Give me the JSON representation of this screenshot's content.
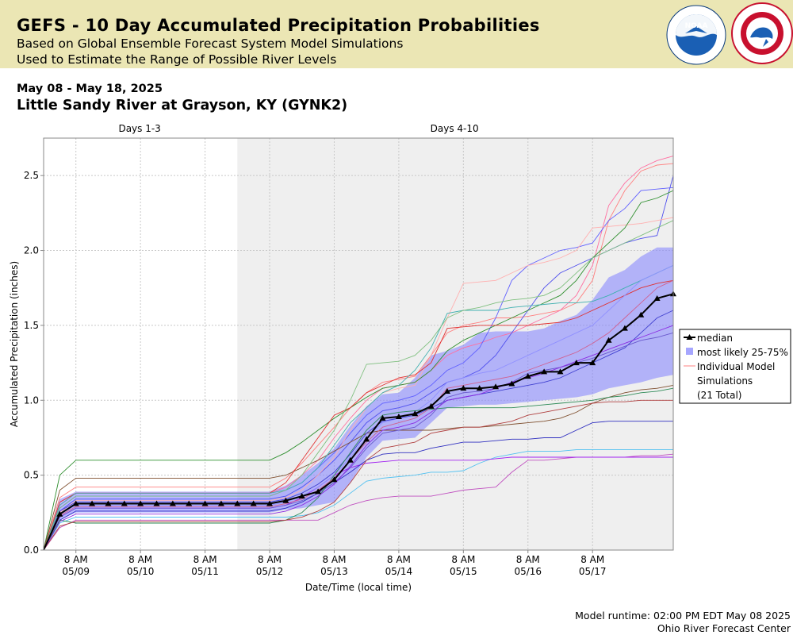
{
  "header": {
    "title": "GEFS - 10 Day Accumulated Precipitation Probabilities",
    "subtitle1": "Based on Global Ensemble Forecast System Model Simulations",
    "subtitle2": "Used to Estimate the Range of Possible River Levels",
    "noaa_logo": "noaa-logo",
    "nws_logo": "nws-logo"
  },
  "date_range": "May 08 - May 18, 2025",
  "station": "Little Sandy River at Grayson, KY (GYNK2)",
  "footer": {
    "runtime": "Model runtime: 02:00 PM EDT May 08 2025",
    "center": "Ohio River Forecast Center"
  },
  "chart_data": {
    "type": "line",
    "xlabel": "Date/Time (local time)",
    "ylabel": "Accumulated Precipitation (inches)",
    "ylim": [
      0,
      2.75
    ],
    "y_ticks": [
      0.0,
      0.5,
      1.0,
      1.5,
      2.0,
      2.5
    ],
    "y_tick_labels": [
      "0.0",
      "0.5",
      "1.0",
      "1.5",
      "2.0",
      "2.5"
    ],
    "x_start_hour": 0,
    "x_end_hour": 234,
    "x_ticks": [
      {
        "hour": 12,
        "time": "8 AM",
        "date": "05/09"
      },
      {
        "hour": 36,
        "time": "8 AM",
        "date": "05/10"
      },
      {
        "hour": 60,
        "time": "8 AM",
        "date": "05/11"
      },
      {
        "hour": 84,
        "time": "8 AM",
        "date": "05/12"
      },
      {
        "hour": 108,
        "time": "8 AM",
        "date": "05/13"
      },
      {
        "hour": 132,
        "time": "8 AM",
        "date": "05/14"
      },
      {
        "hour": 156,
        "time": "8 AM",
        "date": "05/15"
      },
      {
        "hour": 180,
        "time": "8 AM",
        "date": "05/16"
      },
      {
        "hour": 204,
        "time": "8 AM",
        "date": "05/17"
      }
    ],
    "grid": true,
    "periods": [
      {
        "label": "Days 1-3",
        "start_hour": 0,
        "end_hour": 72,
        "shaded": false
      },
      {
        "label": "Days 4-10",
        "start_hour": 72,
        "end_hour": 234,
        "shaded": true
      }
    ],
    "legend_position": "right",
    "legend": {
      "median": "median",
      "band": "most likely 25-75%",
      "members": [
        "Individual Model",
        "Simulations",
        "(21 Total)"
      ]
    },
    "median": {
      "name": "median",
      "color": "#000000",
      "x": [
        0,
        6,
        12,
        18,
        24,
        30,
        36,
        42,
        48,
        54,
        60,
        66,
        72,
        78,
        84,
        90,
        96,
        102,
        108,
        114,
        120,
        126,
        132,
        138,
        144,
        150,
        156,
        162,
        168,
        174,
        180,
        186,
        192,
        198,
        204,
        210,
        216,
        222,
        228,
        234
      ],
      "y": [
        0.0,
        0.24,
        0.31,
        0.31,
        0.31,
        0.31,
        0.31,
        0.31,
        0.31,
        0.31,
        0.31,
        0.31,
        0.31,
        0.31,
        0.31,
        0.33,
        0.36,
        0.39,
        0.47,
        0.6,
        0.74,
        0.88,
        0.89,
        0.91,
        0.96,
        1.06,
        1.08,
        1.08,
        1.09,
        1.11,
        1.16,
        1.19,
        1.19,
        1.25,
        1.25,
        1.4,
        1.48,
        1.57,
        1.68,
        1.71
      ]
    },
    "band_25_75": {
      "name": "most likely 25-75%",
      "color": "#8080ff",
      "lower": [
        0.0,
        0.2,
        0.25,
        0.25,
        0.25,
        0.25,
        0.25,
        0.25,
        0.25,
        0.25,
        0.25,
        0.25,
        0.25,
        0.25,
        0.25,
        0.27,
        0.28,
        0.3,
        0.32,
        0.45,
        0.62,
        0.73,
        0.74,
        0.75,
        0.85,
        0.95,
        0.96,
        0.97,
        0.97,
        0.98,
        0.99,
        1.0,
        1.01,
        1.02,
        1.04,
        1.08,
        1.1,
        1.12,
        1.15,
        1.17
      ],
      "upper": [
        0.0,
        0.34,
        0.39,
        0.39,
        0.39,
        0.39,
        0.39,
        0.39,
        0.39,
        0.39,
        0.39,
        0.39,
        0.39,
        0.39,
        0.39,
        0.43,
        0.5,
        0.58,
        0.68,
        0.83,
        0.96,
        1.04,
        1.05,
        1.15,
        1.3,
        1.33,
        1.37,
        1.45,
        1.46,
        1.46,
        1.46,
        1.48,
        1.53,
        1.57,
        1.67,
        1.82,
        1.87,
        1.96,
        2.02,
        2.02
      ]
    },
    "members": [
      {
        "color": "#ff7f7f",
        "y": [
          0.0,
          0.35,
          0.42,
          0.42,
          0.42,
          0.42,
          0.42,
          0.42,
          0.42,
          0.42,
          0.42,
          0.42,
          0.42,
          0.42,
          0.42,
          0.48,
          0.58,
          0.7,
          0.82,
          0.95,
          1.05,
          1.12,
          1.14,
          1.16,
          1.3,
          1.45,
          1.5,
          1.52,
          1.55,
          1.55,
          1.56,
          1.58,
          1.6,
          1.65,
          1.8,
          2.2,
          2.4,
          2.53,
          2.57,
          2.58
        ]
      },
      {
        "color": "#ff6fa0",
        "y": [
          0.0,
          0.3,
          0.38,
          0.38,
          0.38,
          0.38,
          0.38,
          0.38,
          0.38,
          0.38,
          0.38,
          0.38,
          0.38,
          0.38,
          0.38,
          0.42,
          0.5,
          0.6,
          0.75,
          0.88,
          1.0,
          1.08,
          1.1,
          1.12,
          1.2,
          1.3,
          1.35,
          1.38,
          1.42,
          1.45,
          1.5,
          1.55,
          1.6,
          1.7,
          1.9,
          2.3,
          2.45,
          2.55,
          2.6,
          2.63
        ]
      },
      {
        "color": "#6060ff",
        "y": [
          0.0,
          0.28,
          0.36,
          0.36,
          0.36,
          0.36,
          0.36,
          0.36,
          0.36,
          0.36,
          0.36,
          0.36,
          0.36,
          0.36,
          0.36,
          0.4,
          0.45,
          0.55,
          0.65,
          0.78,
          0.9,
          0.98,
          1.0,
          1.03,
          1.1,
          1.2,
          1.25,
          1.35,
          1.55,
          1.8,
          1.9,
          1.95,
          2.0,
          2.02,
          2.05,
          2.2,
          2.28,
          2.4,
          2.41,
          2.42
        ]
      },
      {
        "color": "#5050ee",
        "y": [
          0.0,
          0.26,
          0.34,
          0.34,
          0.34,
          0.34,
          0.34,
          0.34,
          0.34,
          0.34,
          0.34,
          0.34,
          0.34,
          0.34,
          0.34,
          0.36,
          0.42,
          0.5,
          0.6,
          0.72,
          0.85,
          0.93,
          0.95,
          0.98,
          1.05,
          1.12,
          1.15,
          1.2,
          1.3,
          1.45,
          1.6,
          1.75,
          1.85,
          1.9,
          1.95,
          2.0,
          2.05,
          2.08,
          2.1,
          2.5
        ]
      },
      {
        "color": "#ffb0b0",
        "y": [
          0.0,
          0.25,
          0.33,
          0.33,
          0.33,
          0.33,
          0.33,
          0.33,
          0.33,
          0.33,
          0.33,
          0.33,
          0.33,
          0.33,
          0.33,
          0.35,
          0.4,
          0.5,
          0.62,
          0.8,
          0.95,
          1.05,
          1.08,
          1.1,
          1.3,
          1.55,
          1.78,
          1.79,
          1.8,
          1.85,
          1.9,
          1.92,
          1.95,
          2.0,
          2.15,
          2.16,
          2.17,
          2.18,
          2.2,
          2.22
        ]
      },
      {
        "color": "#2f8f2f",
        "y": [
          0.0,
          0.5,
          0.6,
          0.6,
          0.6,
          0.6,
          0.6,
          0.6,
          0.6,
          0.6,
          0.6,
          0.6,
          0.6,
          0.6,
          0.6,
          0.65,
          0.72,
          0.8,
          0.88,
          0.95,
          1.02,
          1.08,
          1.1,
          1.12,
          1.2,
          1.33,
          1.4,
          1.45,
          1.5,
          1.55,
          1.6,
          1.65,
          1.7,
          1.8,
          1.95,
          2.05,
          2.15,
          2.32,
          2.35,
          2.4
        ]
      },
      {
        "color": "#7f4f2f",
        "y": [
          0.0,
          0.4,
          0.48,
          0.48,
          0.48,
          0.48,
          0.48,
          0.48,
          0.48,
          0.48,
          0.48,
          0.48,
          0.48,
          0.48,
          0.48,
          0.5,
          0.55,
          0.6,
          0.66,
          0.72,
          0.78,
          0.8,
          0.8,
          0.8,
          0.8,
          0.81,
          0.82,
          0.82,
          0.83,
          0.84,
          0.85,
          0.86,
          0.88,
          0.92,
          0.98,
          1.02,
          1.05,
          1.07,
          1.08,
          1.1
        ]
      },
      {
        "color": "#c050c0",
        "y": [
          0.0,
          0.15,
          0.2,
          0.2,
          0.2,
          0.2,
          0.2,
          0.2,
          0.2,
          0.2,
          0.2,
          0.2,
          0.2,
          0.2,
          0.2,
          0.2,
          0.2,
          0.2,
          0.25,
          0.3,
          0.33,
          0.35,
          0.36,
          0.36,
          0.36,
          0.38,
          0.4,
          0.41,
          0.42,
          0.52,
          0.6,
          0.6,
          0.61,
          0.62,
          0.62,
          0.62,
          0.62,
          0.63,
          0.63,
          0.64
        ]
      },
      {
        "color": "#50c0f0",
        "y": [
          0.0,
          0.18,
          0.22,
          0.22,
          0.22,
          0.22,
          0.22,
          0.22,
          0.22,
          0.22,
          0.22,
          0.22,
          0.22,
          0.22,
          0.22,
          0.22,
          0.23,
          0.25,
          0.3,
          0.38,
          0.46,
          0.48,
          0.49,
          0.5,
          0.52,
          0.52,
          0.53,
          0.58,
          0.62,
          0.64,
          0.66,
          0.66,
          0.66,
          0.67,
          0.67,
          0.67,
          0.67,
          0.67,
          0.67,
          0.67
        ]
      },
      {
        "color": "#a020f0",
        "y": [
          0.0,
          0.22,
          0.28,
          0.28,
          0.28,
          0.28,
          0.28,
          0.28,
          0.28,
          0.28,
          0.28,
          0.28,
          0.28,
          0.28,
          0.28,
          0.3,
          0.35,
          0.42,
          0.5,
          0.55,
          0.58,
          0.59,
          0.6,
          0.6,
          0.6,
          0.6,
          0.6,
          0.6,
          0.61,
          0.62,
          0.62,
          0.62,
          0.62,
          0.62,
          0.62,
          0.62,
          0.62,
          0.62,
          0.62,
          0.62
        ]
      },
      {
        "color": "#3030c0",
        "y": [
          0.0,
          0.2,
          0.26,
          0.26,
          0.26,
          0.26,
          0.26,
          0.26,
          0.26,
          0.26,
          0.26,
          0.26,
          0.26,
          0.26,
          0.26,
          0.28,
          0.32,
          0.38,
          0.45,
          0.52,
          0.6,
          0.64,
          0.65,
          0.65,
          0.68,
          0.7,
          0.72,
          0.72,
          0.73,
          0.74,
          0.74,
          0.75,
          0.75,
          0.8,
          0.85,
          0.86,
          0.86,
          0.86,
          0.86,
          0.86
        ]
      },
      {
        "color": "#e03030",
        "y": [
          0.0,
          0.32,
          0.38,
          0.38,
          0.38,
          0.38,
          0.38,
          0.38,
          0.38,
          0.38,
          0.38,
          0.38,
          0.38,
          0.38,
          0.38,
          0.45,
          0.6,
          0.75,
          0.9,
          0.95,
          1.05,
          1.1,
          1.15,
          1.17,
          1.25,
          1.48,
          1.49,
          1.5,
          1.5,
          1.5,
          1.5,
          1.51,
          1.52,
          1.55,
          1.6,
          1.65,
          1.7,
          1.75,
          1.78,
          1.8
        ]
      },
      {
        "color": "#40b0b0",
        "y": [
          0.0,
          0.3,
          0.38,
          0.38,
          0.38,
          0.38,
          0.38,
          0.38,
          0.38,
          0.38,
          0.38,
          0.38,
          0.38,
          0.38,
          0.38,
          0.4,
          0.45,
          0.55,
          0.7,
          0.85,
          0.95,
          1.05,
          1.1,
          1.2,
          1.35,
          1.58,
          1.6,
          1.6,
          1.6,
          1.62,
          1.63,
          1.64,
          1.65,
          1.65,
          1.66,
          1.7,
          1.75,
          1.8,
          1.85,
          1.9
        ]
      },
      {
        "color": "#80c080",
        "y": [
          0.0,
          0.28,
          0.36,
          0.36,
          0.36,
          0.36,
          0.36,
          0.36,
          0.36,
          0.36,
          0.36,
          0.36,
          0.36,
          0.36,
          0.36,
          0.4,
          0.5,
          0.65,
          0.8,
          1.0,
          1.24,
          1.25,
          1.26,
          1.3,
          1.4,
          1.55,
          1.6,
          1.62,
          1.65,
          1.67,
          1.68,
          1.7,
          1.75,
          1.85,
          1.95,
          2.0,
          2.05,
          2.1,
          2.15,
          2.2
        ]
      },
      {
        "color": "#9090ff",
        "y": [
          0.0,
          0.24,
          0.3,
          0.3,
          0.3,
          0.3,
          0.3,
          0.3,
          0.3,
          0.3,
          0.3,
          0.3,
          0.3,
          0.3,
          0.3,
          0.32,
          0.36,
          0.42,
          0.5,
          0.62,
          0.75,
          0.85,
          0.88,
          0.92,
          1.0,
          1.12,
          1.15,
          1.18,
          1.2,
          1.25,
          1.3,
          1.35,
          1.4,
          1.45,
          1.5,
          1.6,
          1.7,
          1.8,
          1.85,
          1.9
        ]
      },
      {
        "color": "#4040d0",
        "y": [
          0.0,
          0.26,
          0.32,
          0.32,
          0.32,
          0.32,
          0.32,
          0.32,
          0.32,
          0.32,
          0.32,
          0.32,
          0.32,
          0.32,
          0.32,
          0.34,
          0.38,
          0.44,
          0.52,
          0.64,
          0.78,
          0.86,
          0.88,
          0.9,
          0.95,
          1.0,
          1.02,
          1.04,
          1.06,
          1.08,
          1.1,
          1.12,
          1.15,
          1.2,
          1.25,
          1.3,
          1.35,
          1.45,
          1.55,
          1.6
        ]
      },
      {
        "color": "#6a5acd",
        "y": [
          0.0,
          0.22,
          0.28,
          0.28,
          0.28,
          0.28,
          0.28,
          0.28,
          0.28,
          0.28,
          0.28,
          0.28,
          0.28,
          0.28,
          0.28,
          0.3,
          0.33,
          0.38,
          0.45,
          0.55,
          0.68,
          0.78,
          0.8,
          0.82,
          0.9,
          1.02,
          1.05,
          1.06,
          1.08,
          1.12,
          1.18,
          1.2,
          1.22,
          1.25,
          1.28,
          1.32,
          1.36,
          1.4,
          1.42,
          1.45
        ]
      },
      {
        "color": "#2e8b57",
        "y": [
          0.0,
          0.2,
          0.18,
          0.18,
          0.18,
          0.18,
          0.18,
          0.18,
          0.18,
          0.18,
          0.18,
          0.18,
          0.18,
          0.18,
          0.18,
          0.2,
          0.25,
          0.35,
          0.5,
          0.65,
          0.8,
          0.9,
          0.92,
          0.93,
          0.94,
          0.95,
          0.95,
          0.95,
          0.95,
          0.95,
          0.96,
          0.97,
          0.98,
          0.99,
          1.0,
          1.02,
          1.03,
          1.05,
          1.06,
          1.08
        ]
      },
      {
        "color": "#b04040",
        "y": [
          0.0,
          0.16,
          0.19,
          0.19,
          0.19,
          0.19,
          0.19,
          0.19,
          0.19,
          0.19,
          0.19,
          0.19,
          0.19,
          0.19,
          0.19,
          0.2,
          0.22,
          0.26,
          0.32,
          0.45,
          0.6,
          0.68,
          0.7,
          0.72,
          0.78,
          0.8,
          0.82,
          0.82,
          0.84,
          0.86,
          0.9,
          0.92,
          0.94,
          0.96,
          0.98,
          0.99,
          0.99,
          1.0,
          1.0,
          1.0
        ]
      },
      {
        "color": "#8a2be2",
        "y": [
          0.0,
          0.19,
          0.24,
          0.24,
          0.24,
          0.24,
          0.24,
          0.24,
          0.24,
          0.24,
          0.24,
          0.24,
          0.24,
          0.24,
          0.24,
          0.26,
          0.3,
          0.36,
          0.44,
          0.56,
          0.7,
          0.8,
          0.82,
          0.85,
          0.92,
          1.0,
          1.02,
          1.04,
          1.08,
          1.12,
          1.15,
          1.18,
          1.22,
          1.26,
          1.3,
          1.34,
          1.38,
          1.42,
          1.46,
          1.5
        ]
      },
      {
        "color": "#d06090",
        "y": [
          0.0,
          0.23,
          0.29,
          0.29,
          0.29,
          0.29,
          0.29,
          0.29,
          0.29,
          0.29,
          0.29,
          0.29,
          0.29,
          0.29,
          0.29,
          0.31,
          0.34,
          0.4,
          0.48,
          0.6,
          0.72,
          0.82,
          0.85,
          0.88,
          0.95,
          1.08,
          1.1,
          1.12,
          1.14,
          1.16,
          1.2,
          1.24,
          1.28,
          1.32,
          1.38,
          1.45,
          1.55,
          1.65,
          1.75,
          1.8
        ]
      }
    ]
  }
}
